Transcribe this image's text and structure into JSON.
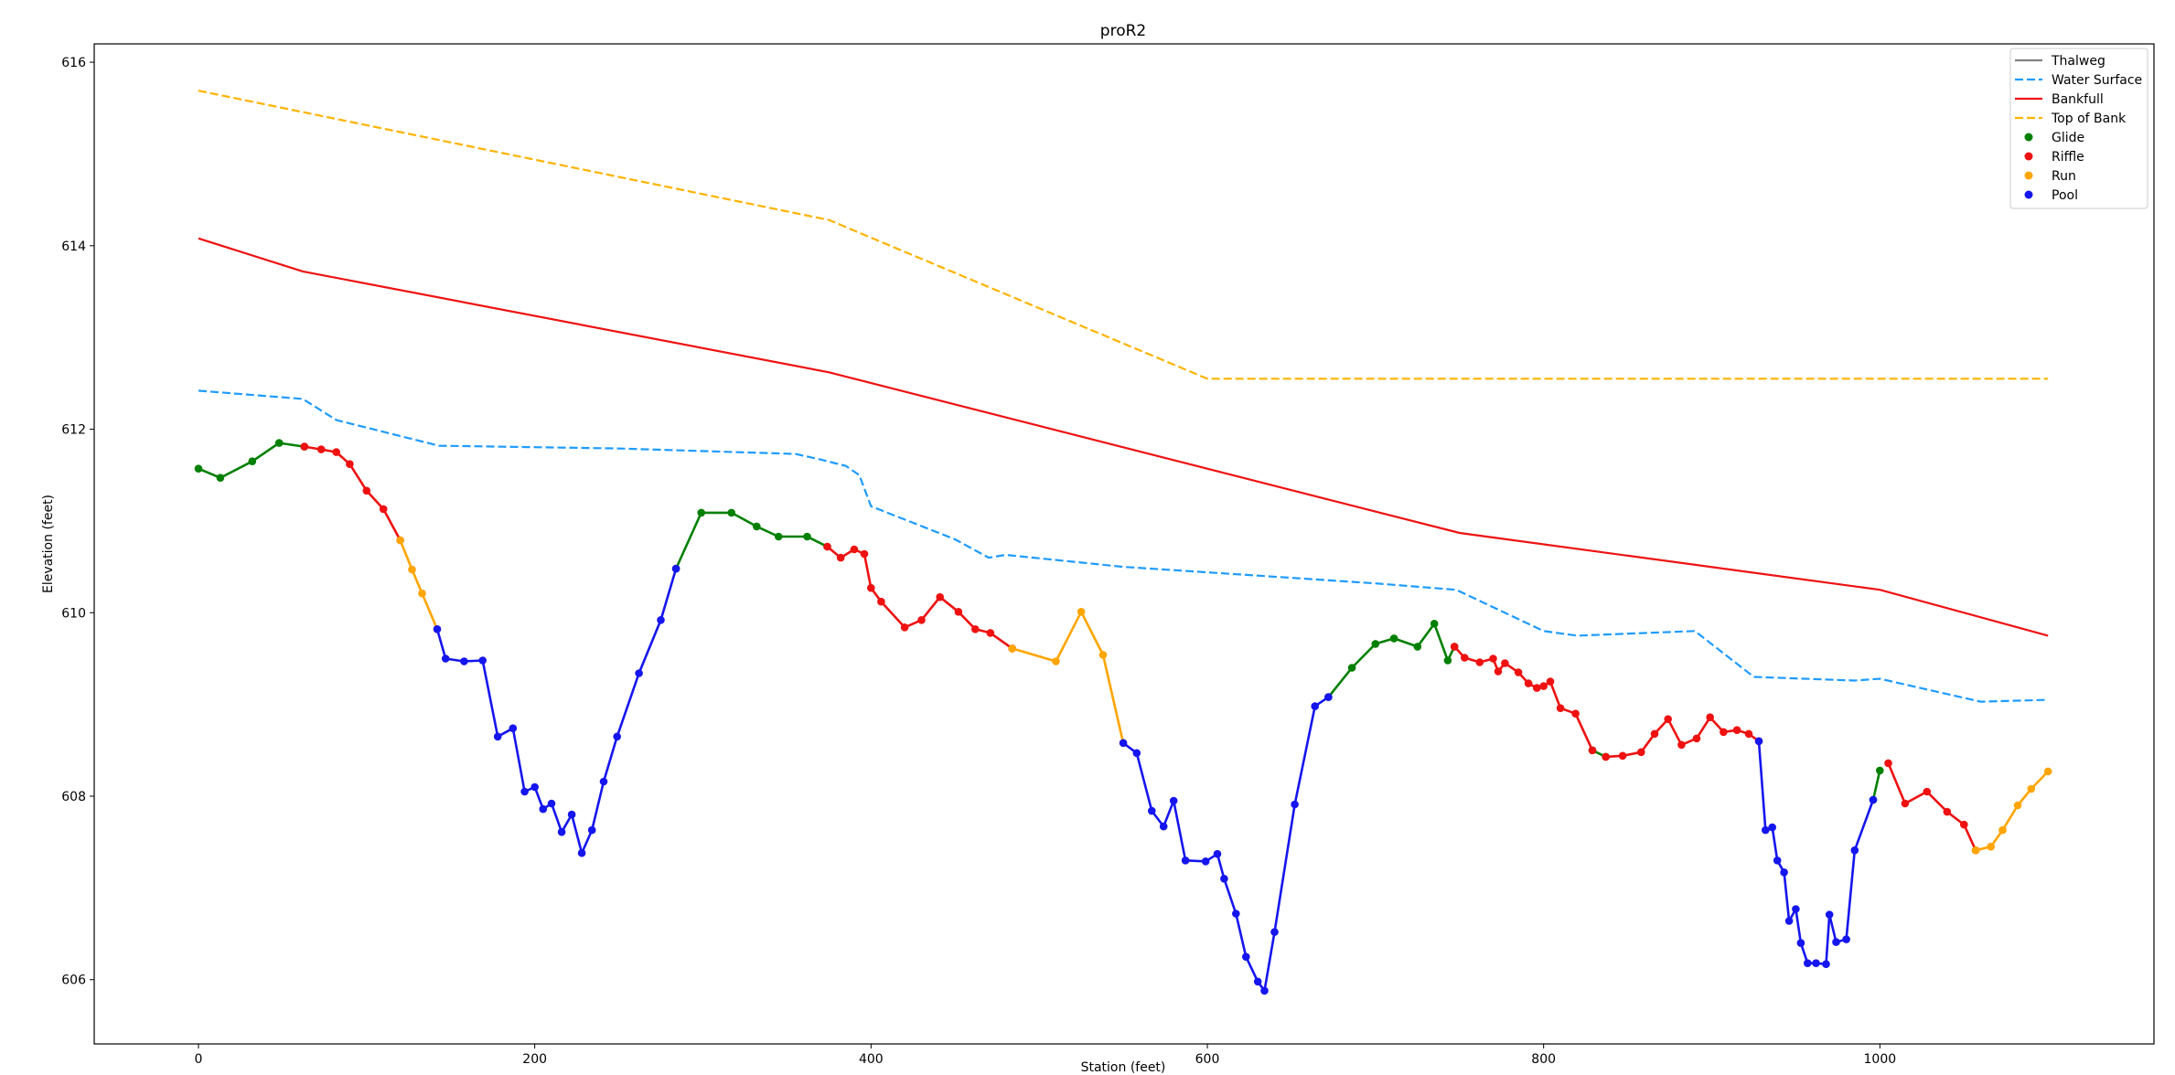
{
  "chart_data": {
    "type": "line",
    "title": "proR2",
    "xlabel": "Station (feet)",
    "ylabel": "Elevation (feet)",
    "xlim": [
      -62,
      1163
    ],
    "ylim": [
      605.3,
      616.2
    ],
    "xticks": [
      "0",
      "200",
      "400",
      "600",
      "800",
      "1000"
    ],
    "xtick_values": [
      0,
      200,
      400,
      600,
      800,
      1000
    ],
    "yticks": [
      "606",
      "608",
      "610",
      "612",
      "614",
      "616"
    ],
    "ytick_values": [
      606,
      608,
      610,
      612,
      614,
      616
    ],
    "grid": false,
    "legend_position": "top-right",
    "legend": [
      "Thalweg",
      "Water Surface",
      "Bankfull",
      "Top of Bank",
      "Glide",
      "Riffle",
      "Run",
      "Pool"
    ],
    "series": [
      {
        "name": "Thalweg",
        "color": "#808080",
        "style": "solid",
        "x": [],
        "y": []
      },
      {
        "name": "Water Surface",
        "color": "#1e9bff",
        "style": "dashed",
        "x": [
          0,
          62,
          82,
          143,
          250,
          355,
          370,
          385,
          393,
          400,
          450,
          470,
          480,
          550,
          600,
          650,
          700,
          748,
          800,
          820,
          890,
          925,
          985,
          1000,
          1060,
          1100
        ],
        "y": [
          612.42,
          612.33,
          612.1,
          611.82,
          611.79,
          611.73,
          611.67,
          611.6,
          611.5,
          611.16,
          610.8,
          610.6,
          610.63,
          610.5,
          610.44,
          610.38,
          610.32,
          610.25,
          609.8,
          609.75,
          609.8,
          609.3,
          609.26,
          609.28,
          609.03,
          609.05
        ]
      },
      {
        "name": "Bankfull",
        "color": "#ee1111",
        "style": "solid",
        "x": [
          0,
          62,
          375,
          750,
          1000,
          1100
        ],
        "y": [
          614.08,
          613.72,
          612.62,
          610.87,
          610.25,
          609.75
        ]
      },
      {
        "name": "Top of Bank",
        "color": "#ffb300",
        "style": "dashed",
        "x": [
          0,
          375,
          600,
          1100
        ],
        "y": [
          615.69,
          614.28,
          612.55,
          612.55
        ]
      },
      {
        "name": "Glide",
        "color": "#008000",
        "style": "markers",
        "segments": [
          {
            "x": [
              0,
              13,
              32,
              48,
              63
            ],
            "y": [
              611.57,
              611.47,
              611.65,
              611.85,
              611.81
            ]
          },
          {
            "x": [
              284,
              299,
              317,
              332,
              345,
              362,
              374
            ],
            "y": [
              610.48,
              611.09,
              611.09,
              610.94,
              610.83,
              610.83,
              610.72
            ]
          },
          {
            "x": [
              672,
              686,
              700,
              711,
              725,
              735,
              743,
              747
            ],
            "y": [
              609.08,
              609.4,
              609.66,
              609.72,
              609.63,
              609.88,
              609.48,
              609.63
            ]
          },
          {
            "x": [
              829,
              837
            ],
            "y": [
              608.5,
              608.43
            ]
          },
          {
            "x": [
              996,
              1000
            ],
            "y": [
              607.96,
              608.28
            ]
          }
        ]
      },
      {
        "name": "Riffle",
        "color": "#ee1111",
        "style": "markers",
        "segments": [
          {
            "x": [
              63,
              73,
              82,
              90,
              100,
              110,
              120
            ],
            "y": [
              611.81,
              611.78,
              611.75,
              611.62,
              611.33,
              611.13,
              610.79
            ]
          },
          {
            "x": [
              374,
              382,
              390,
              396,
              400,
              406,
              420,
              430,
              441,
              452,
              462,
              471,
              484
            ],
            "y": [
              610.72,
              610.6,
              610.69,
              610.64,
              610.27,
              610.12,
              609.84,
              609.92,
              610.17,
              610.01,
              609.82,
              609.78,
              609.61
            ]
          },
          {
            "x": [
              747,
              753,
              762,
              770,
              773,
              777,
              785,
              791,
              796,
              800,
              804,
              810,
              819,
              829
            ],
            "y": [
              609.63,
              609.51,
              609.46,
              609.5,
              609.36,
              609.45,
              609.35,
              609.23,
              609.18,
              609.2,
              609.25,
              608.96,
              608.9,
              608.5
            ]
          },
          {
            "x": [
              837,
              847,
              858,
              866,
              874,
              882,
              891,
              899,
              907,
              915,
              922,
              928
            ],
            "y": [
              608.43,
              608.44,
              608.48,
              608.68,
              608.84,
              608.56,
              608.63,
              608.86,
              608.7,
              608.72,
              608.68,
              608.6
            ]
          },
          {
            "x": [
              1005,
              1015,
              1028,
              1040,
              1050,
              1057
            ],
            "y": [
              608.36,
              607.92,
              608.05,
              607.83,
              607.69,
              607.41
            ]
          }
        ]
      },
      {
        "name": "Run",
        "color": "#ffa500",
        "style": "markers",
        "segments": [
          {
            "x": [
              120,
              127,
              133,
              142
            ],
            "y": [
              610.79,
              610.47,
              610.21,
              609.82
            ]
          },
          {
            "x": [
              484,
              510,
              525,
              538,
              550
            ],
            "y": [
              609.61,
              609.47,
              610.01,
              609.54,
              608.58
            ]
          },
          {
            "x": [
              1057,
              1066,
              1073,
              1082,
              1090,
              1100
            ],
            "y": [
              607.41,
              607.45,
              607.63,
              607.9,
              608.08,
              608.27
            ]
          }
        ]
      },
      {
        "name": "Pool",
        "color": "#1515ee",
        "style": "markers",
        "segments": [
          {
            "x": [
              142,
              147,
              158,
              169,
              178,
              187,
              194,
              200,
              205,
              210,
              216,
              222,
              228,
              234,
              241,
              249,
              262,
              275,
              284
            ],
            "y": [
              609.82,
              609.5,
              609.47,
              609.48,
              608.65,
              608.74,
              608.05,
              608.1,
              607.86,
              607.92,
              607.61,
              607.8,
              607.38,
              607.63,
              608.16,
              608.65,
              609.34,
              609.92,
              610.48
            ]
          },
          {
            "x": [
              550,
              558,
              567,
              574,
              580,
              587,
              599,
              606,
              610,
              617,
              623,
              630,
              634,
              640,
              652,
              664,
              672
            ],
            "y": [
              608.58,
              608.47,
              607.84,
              607.67,
              607.95,
              607.3,
              607.29,
              607.37,
              607.1,
              606.72,
              606.25,
              605.98,
              605.88,
              606.52,
              607.91,
              608.98,
              609.08
            ]
          },
          {
            "x": [
              928,
              932,
              936,
              939,
              943,
              946,
              950,
              953,
              957,
              962,
              968,
              970,
              974,
              980,
              985,
              996
            ],
            "y": [
              608.6,
              607.63,
              607.66,
              607.3,
              607.17,
              606.64,
              606.77,
              606.4,
              606.18,
              606.18,
              606.17,
              606.71,
              606.41,
              606.44,
              607.41,
              607.96
            ]
          }
        ]
      }
    ]
  }
}
